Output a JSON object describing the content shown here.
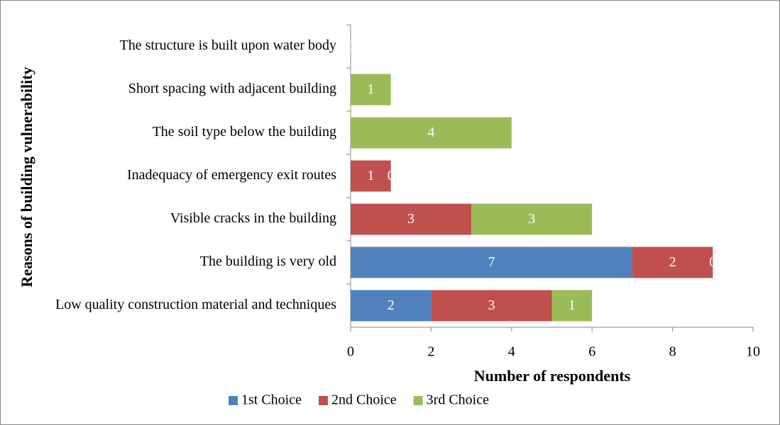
{
  "chart_data": {
    "type": "stacked-bar-horizontal",
    "xlabel": "Number of respondents",
    "ylabel": "Reasons of building vulnerability",
    "categories": [
      "The structure is built upon water body",
      "Short spacing with adjacent building",
      "The soil type below the building",
      "Inadequacy  of emergency exit routes",
      "Visible cracks in the building",
      "The building is very old",
      "Low quality construction material and techniques"
    ],
    "series": [
      {
        "name": "1st Choice",
        "color": "#4f81bd",
        "values": [
          0,
          0,
          0,
          0,
          0,
          7,
          2
        ]
      },
      {
        "name": "2nd Choice",
        "color": "#c0504d",
        "values": [
          0,
          0,
          0,
          1,
          3,
          2,
          3
        ]
      },
      {
        "name": "3rd Choice",
        "color": "#9bbb59",
        "values": [
          0,
          1,
          4,
          0,
          3,
          0,
          1
        ]
      }
    ],
    "xlim": [
      0,
      10
    ],
    "xticks": [
      0,
      2,
      4,
      6,
      8,
      10
    ],
    "legend": "bottom"
  }
}
